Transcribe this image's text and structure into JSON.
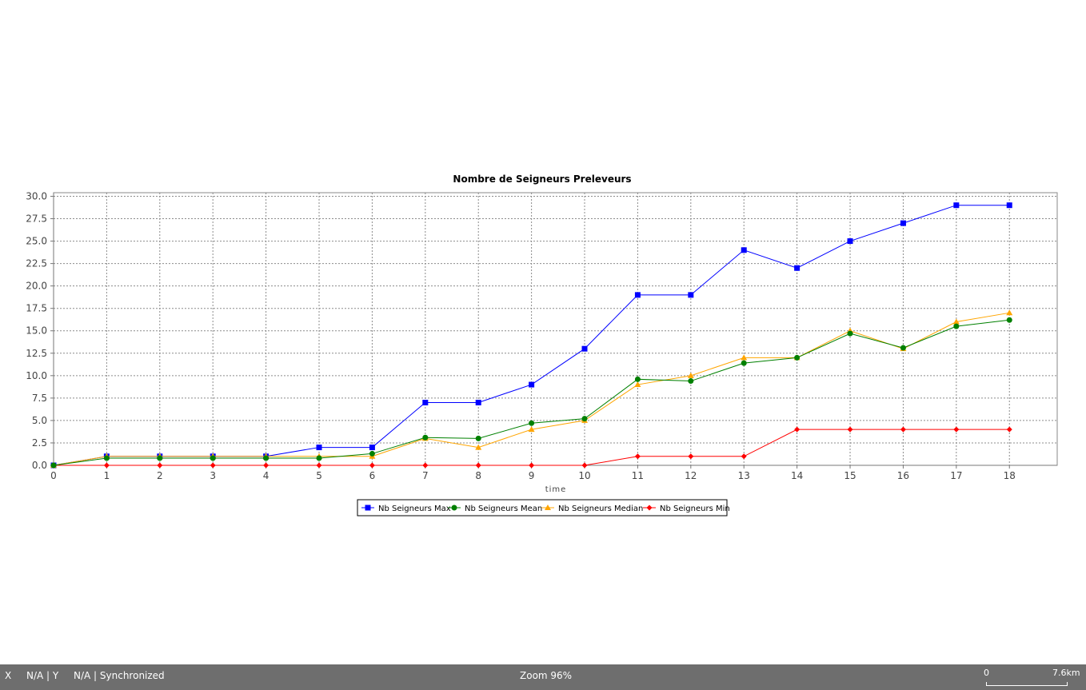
{
  "chart_data": {
    "type": "line",
    "title": "Nombre de Seigneurs Preleveurs",
    "xlabel": "time",
    "ylabel": "",
    "x": [
      0,
      1,
      2,
      3,
      4,
      5,
      6,
      7,
      8,
      9,
      10,
      11,
      12,
      13,
      14,
      15,
      16,
      17,
      18
    ],
    "xlim": [
      0,
      18.9
    ],
    "ylim": [
      0,
      30.4
    ],
    "xticks": [
      0,
      1,
      2,
      3,
      4,
      5,
      6,
      7,
      8,
      9,
      10,
      11,
      12,
      13,
      14,
      15,
      16,
      17,
      18
    ],
    "yticks": [
      0.0,
      2.5,
      5.0,
      7.5,
      10.0,
      12.5,
      15.0,
      17.5,
      20.0,
      22.5,
      25.0,
      27.5,
      30.0
    ],
    "ytick_labels": [
      "0.0",
      "2.5",
      "5.0",
      "7.5",
      "10.0",
      "12.5",
      "15.0",
      "17.5",
      "20.0",
      "22.5",
      "25.0",
      "27.5",
      "30.0"
    ],
    "grid": true,
    "legend_position": "bottom",
    "series": [
      {
        "name": "Nb Seigneurs Max",
        "color": "#0000ff",
        "marker": "square",
        "values": [
          0,
          1,
          1,
          1,
          1,
          2,
          2,
          7,
          7,
          9,
          13,
          19,
          19,
          24,
          22,
          25,
          27,
          29,
          29
        ]
      },
      {
        "name": "Nb Seigneurs Mean",
        "color": "#008000",
        "marker": "circle",
        "values": [
          0,
          0.8,
          0.8,
          0.8,
          0.8,
          0.8,
          1.3,
          3.1,
          3.0,
          4.7,
          5.2,
          9.6,
          9.4,
          11.4,
          12.0,
          14.7,
          13.1,
          15.5,
          16.2
        ]
      },
      {
        "name": "Nb Seigneurs Median",
        "color": "#ffa500",
        "marker": "triangle",
        "values": [
          0,
          1,
          1,
          1,
          1,
          1,
          1,
          3,
          2,
          4,
          5,
          9,
          10,
          12,
          12,
          15,
          13,
          16,
          17
        ]
      },
      {
        "name": "Nb Seigneurs Min",
        "color": "#ff0000",
        "marker": "diamond",
        "values": [
          0,
          0,
          0,
          0,
          0,
          0,
          0,
          0,
          0,
          0,
          0,
          1,
          1,
          1,
          4,
          4,
          4,
          4,
          4
        ]
      }
    ]
  },
  "status": {
    "x_label": "X",
    "x_value": "N/A | Y",
    "y_value": "N/A | Synchronized",
    "zoom": "Zoom 96%",
    "scale_start": "0",
    "scale_end": "7.6km"
  }
}
